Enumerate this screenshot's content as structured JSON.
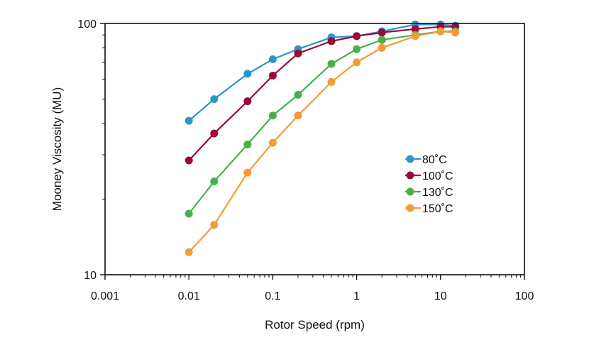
{
  "chart_data": {
    "type": "line",
    "xscale": "log",
    "yscale": "log",
    "xlim": [
      0.001,
      100
    ],
    "ylim": [
      10,
      100
    ],
    "xlabel": "Rotor Speed (rpm)",
    "ylabel": "Mooney Viscosity (MU)",
    "x_ticks": [
      "0.001",
      "0.01",
      "0.1",
      "1",
      "10",
      "100"
    ],
    "y_ticks": [
      "10",
      "100"
    ],
    "legend_position": "right-middle",
    "series": [
      {
        "name": "80˚C",
        "color": "#2b96c8",
        "x": [
          0.01,
          0.02,
          0.05,
          0.1,
          0.2,
          0.5,
          1,
          2,
          5,
          10,
          15
        ],
        "y": [
          41,
          50,
          63,
          72,
          79,
          88,
          89,
          93,
          99,
          99,
          98
        ]
      },
      {
        "name": "100˚C",
        "color": "#9b0a37",
        "x": [
          0.01,
          0.02,
          0.05,
          0.1,
          0.2,
          0.5,
          1,
          2,
          5,
          10,
          15
        ],
        "y": [
          28.5,
          36.5,
          49,
          62,
          76,
          85,
          89,
          92,
          95,
          97,
          97
        ]
      },
      {
        "name": "130˚C",
        "color": "#48b04a",
        "x": [
          0.01,
          0.02,
          0.05,
          0.1,
          0.2,
          0.5,
          1,
          2,
          5,
          10,
          15
        ],
        "y": [
          17.5,
          23.5,
          33,
          43,
          52,
          69,
          79,
          86,
          90,
          93,
          93
        ]
      },
      {
        "name": "150˚C",
        "color": "#f29b38",
        "x": [
          0.01,
          0.02,
          0.05,
          0.1,
          0.2,
          0.5,
          1,
          2,
          5,
          10,
          15
        ],
        "y": [
          12.3,
          15.8,
          25.5,
          33.5,
          43,
          58.5,
          70,
          80,
          89,
          93,
          92
        ]
      }
    ]
  }
}
